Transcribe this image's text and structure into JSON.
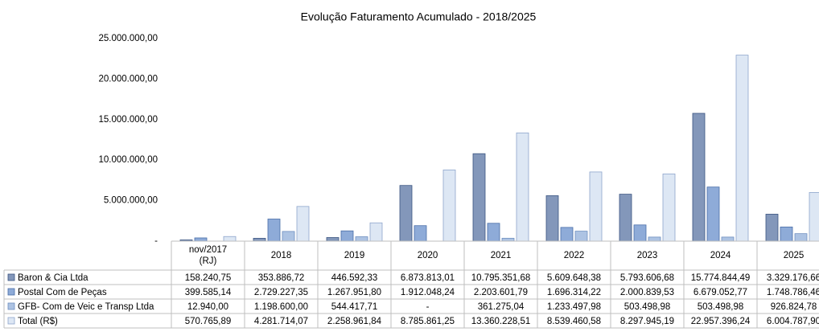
{
  "chart_data": {
    "type": "bar",
    "title": "Evolução  Faturamento Acumulado  - 2018/2025",
    "categories": [
      "nov/2017 (RJ)",
      "2018",
      "2019",
      "2020",
      "2021",
      "2022",
      "2023",
      "2024",
      "2025"
    ],
    "series": [
      {
        "name": "Baron & Cia Ltda",
        "color": "#8397ba",
        "values": [
          158240.75,
          353886.72,
          446592.33,
          6873813.01,
          10795351.68,
          5609648.38,
          5793606.68,
          15774844.49,
          3329176.66
        ],
        "value_labels": [
          "158.240,75",
          "353.886,72",
          "446.592,33",
          "6.873.813,01",
          "10.795.351,68",
          "5.609.648,38",
          "5.793.606,68",
          "15.774.844,49",
          "3.329.176,66"
        ]
      },
      {
        "name": "Postal Com de Peças",
        "color": "#8eabd8",
        "values": [
          399585.14,
          2729227.35,
          1267951.8,
          1912048.24,
          2203601.79,
          1696314.22,
          2000839.53,
          6679052.77,
          1748786.46
        ],
        "value_labels": [
          "399.585,14",
          "2.729.227,35",
          "1.267.951,80",
          "1.912.048,24",
          "2.203.601,79",
          "1.696.314,22",
          "2.000.839,53",
          "6.679.052,77",
          "1.748.786,46"
        ]
      },
      {
        "name": "GFB- Com de Veic e Transp Ltda",
        "color": "#adc3e3",
        "values": [
          12940.0,
          1198600.0,
          544417.71,
          0,
          361275.04,
          1233497.98,
          503498.98,
          503498.98,
          926824.78
        ],
        "value_labels": [
          "12.940,00",
          "1.198.600,00",
          "544.417,71",
          "-",
          "361.275,04",
          "1.233.497,98",
          "503.498,98",
          "503.498,98",
          "926.824,78"
        ]
      },
      {
        "name": "Total (R$)",
        "color": "#dde7f4",
        "values": [
          570765.89,
          4281714.07,
          2258961.84,
          8785861.25,
          13360228.51,
          8539460.58,
          8297945.19,
          22957396.24,
          6004787.9
        ],
        "value_labels": [
          "570.765,89",
          "4.281.714,07",
          "2.258.961,84",
          "8.785.861,25",
          "13.360.228,51",
          "8.539.460,58",
          "8.297.945,19",
          "22.957.396,24",
          "6.004.787,90"
        ]
      }
    ],
    "ylim": [
      0,
      25000000
    ],
    "yticks": [
      {
        "value": 0,
        "label": "-"
      },
      {
        "value": 5000000,
        "label": "5.000.000,00"
      },
      {
        "value": 10000000,
        "label": "10.000.000,00"
      },
      {
        "value": 15000000,
        "label": "15.000.000,00"
      },
      {
        "value": 20000000,
        "label": "20.000.000,00"
      },
      {
        "value": 25000000,
        "label": "25.000.000,00"
      }
    ],
    "grid": false
  }
}
